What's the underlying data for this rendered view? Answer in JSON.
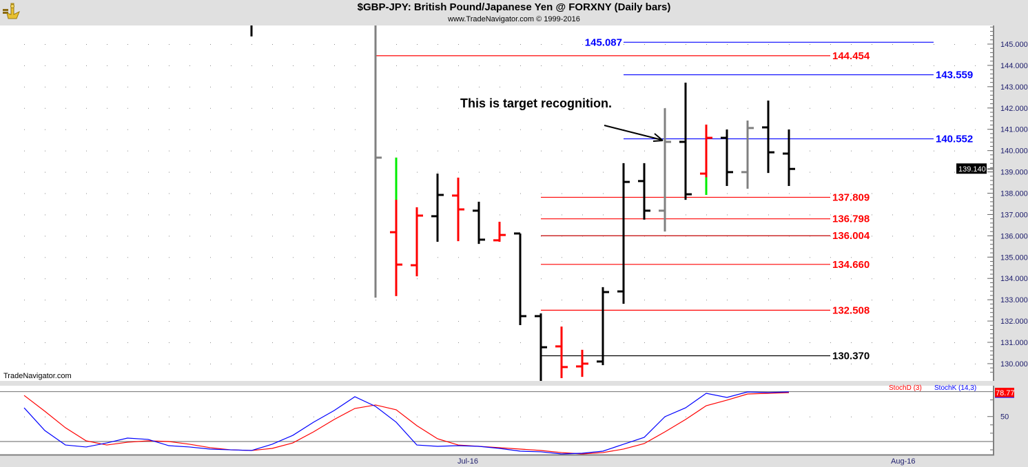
{
  "header": {
    "title": "$GBP-JPY:  British Pound/Japanese Yen @ FORXNY  (Daily bars)",
    "subtitle": "www.TradeNavigator.com © 1999-2016",
    "logo_icon": "trade-navigator-logo-icon"
  },
  "watermark": "TradeNavigator.com",
  "annotation": {
    "text": "This is target recognition.",
    "arrow_to_price": 140.552
  },
  "colors": {
    "up": "#000000",
    "down": "#ff0000",
    "neutral": "#808080",
    "accent": "#00ee00",
    "blue": "#0000ff",
    "red": "#ff0000",
    "darkred": "#c00000"
  },
  "chart_data": [
    {
      "type": "ohlc",
      "title": "$GBP-JPY:  British Pound/Japanese Yen @ FORXNY  (Daily bars)",
      "ylim": [
        129.5,
        145.8
      ],
      "y_ticks": [
        "145.000",
        "144.000",
        "143.000",
        "142.000",
        "141.000",
        "140.000",
        "139.000",
        "138.000",
        "137.000",
        "136.000",
        "135.000",
        "134.000",
        "133.000",
        "132.000",
        "131.000",
        "130.000"
      ],
      "x_tick_labels": [
        "Jul-16",
        "Aug-16"
      ],
      "grid": true,
      "last_price": "139.140",
      "bars": [
        {
          "i": 11,
          "o": null,
          "h": 146.0,
          "l": 145.36,
          "c": null,
          "color": "up"
        },
        {
          "i": 17,
          "o": null,
          "h": 146.0,
          "l": 133.1,
          "c": 139.67,
          "color": "neutral"
        },
        {
          "i": 18,
          "o": 136.17,
          "h": 139.67,
          "l": 133.17,
          "c": 134.65,
          "color": "down",
          "accent_to": 137.69
        },
        {
          "i": 19,
          "o": 134.62,
          "h": 137.34,
          "l": 134.1,
          "c": 136.95,
          "color": "down"
        },
        {
          "i": 20,
          "o": 136.92,
          "h": 138.92,
          "l": 135.72,
          "c": 137.92,
          "color": "up"
        },
        {
          "i": 21,
          "o": 137.89,
          "h": 138.73,
          "l": 135.75,
          "c": 137.24,
          "color": "down"
        },
        {
          "i": 22,
          "o": 137.18,
          "h": 137.6,
          "l": 135.62,
          "c": 135.82,
          "color": "up"
        },
        {
          "i": 23,
          "o": 135.79,
          "h": 136.66,
          "l": 135.72,
          "c": 136.04,
          "color": "down"
        },
        {
          "i": 24,
          "o": 136.11,
          "h": 136.11,
          "l": 131.81,
          "c": 132.23,
          "color": "up"
        },
        {
          "i": 25,
          "o": 132.23,
          "h": 132.36,
          "l": 129.1,
          "c": 130.77,
          "color": "up"
        },
        {
          "i": 26,
          "o": 130.81,
          "h": 131.74,
          "l": 129.32,
          "c": 129.84,
          "color": "down"
        },
        {
          "i": 27,
          "o": 129.87,
          "h": 130.65,
          "l": 129.38,
          "c": 130.0,
          "color": "down"
        },
        {
          "i": 28,
          "o": 130.1,
          "h": 133.59,
          "l": 129.93,
          "c": 133.36,
          "color": "up"
        },
        {
          "i": 29,
          "o": 133.39,
          "h": 139.41,
          "l": 132.81,
          "c": 138.53,
          "color": "up"
        },
        {
          "i": 30,
          "o": 138.57,
          "h": 139.41,
          "l": 136.76,
          "c": 137.18,
          "color": "up"
        },
        {
          "i": 31,
          "o": 137.18,
          "h": 141.99,
          "l": 136.2,
          "c": 140.41,
          "color": "neutral"
        },
        {
          "i": 32,
          "o": 140.41,
          "h": 143.19,
          "l": 137.69,
          "c": 137.95,
          "color": "up"
        },
        {
          "i": 33,
          "o": 138.92,
          "h": 141.22,
          "l": 137.92,
          "c": 140.6,
          "color": "down",
          "accent_from": 138.75
        },
        {
          "i": 34,
          "o": 140.6,
          "h": 140.99,
          "l": 138.34,
          "c": 138.99,
          "color": "up"
        },
        {
          "i": 35,
          "o": 138.99,
          "h": 141.41,
          "l": 138.21,
          "c": 141.06,
          "color": "neutral"
        },
        {
          "i": 36,
          "o": 141.09,
          "h": 142.35,
          "l": 138.95,
          "c": 139.92,
          "color": "up"
        },
        {
          "i": 37,
          "o": 139.86,
          "h": 140.99,
          "l": 138.34,
          "c": 139.14,
          "color": "up"
        }
      ],
      "levels": [
        {
          "value": 145.087,
          "label": "145.087",
          "line_color": "blue",
          "label_color": "blue"
        },
        {
          "value": 144.454,
          "label": "144.454",
          "line_color": "red",
          "label_color": "red"
        },
        {
          "value": 143.559,
          "label": "143.559",
          "line_color": "blue",
          "label_color": "blue"
        },
        {
          "value": 140.552,
          "label": "140.552",
          "line_color": "blue",
          "label_color": "blue"
        },
        {
          "value": 137.809,
          "label": "137.809",
          "line_color": "red",
          "label_color": "red"
        },
        {
          "value": 136.798,
          "label": "136.798",
          "line_color": "red",
          "label_color": "red"
        },
        {
          "value": 136.004,
          "label": "136.004",
          "line_color": "darkred",
          "label_color": "red"
        },
        {
          "value": 134.66,
          "label": "134.660",
          "line_color": "red",
          "label_color": "red"
        },
        {
          "value": 132.508,
          "label": "132.508",
          "line_color": "red",
          "label_color": "red"
        },
        {
          "value": 130.37,
          "label": "130.370",
          "line_color": "up",
          "label_color": "up"
        }
      ]
    },
    {
      "type": "line",
      "ylim": [
        5,
        87
      ],
      "y_ticks": [
        "50"
      ],
      "bands": [
        20,
        80
      ],
      "series": [
        {
          "name": "StochD (3)",
          "color": "#ff0000",
          "last_value": "78.77",
          "values": [
            75.4,
            56.4,
            36.5,
            20.8,
            15.8,
            19.1,
            20.8,
            20.0,
            16.7,
            12.6,
            10.0,
            9.2,
            11.7,
            18.3,
            31.6,
            46.5,
            59.7,
            63.9,
            58.1,
            39.0,
            23.3,
            15.8,
            14.2,
            12.6,
            10.9,
            9.2,
            6.7,
            5.1,
            6.7,
            10.9,
            17.5,
            31.6,
            46.5,
            63.0,
            69.7,
            77.1,
            77.9,
            78.77
          ]
        },
        {
          "name": "StochK (14,3)",
          "color": "#0000ff",
          "values": [
            60.5,
            33.2,
            15.8,
            13.4,
            18.3,
            24.1,
            22.5,
            15.0,
            13.4,
            10.9,
            10.0,
            9.2,
            16.7,
            27.4,
            43.2,
            57.2,
            73.8,
            62.2,
            43.2,
            15.8,
            14.2,
            15.0,
            14.2,
            11.7,
            8.4,
            7.6,
            5.1,
            5.9,
            8.4,
            16.7,
            25.0,
            49.8,
            60.5,
            77.9,
            73.0,
            79.6,
            78.8,
            79.6
          ]
        }
      ]
    }
  ]
}
